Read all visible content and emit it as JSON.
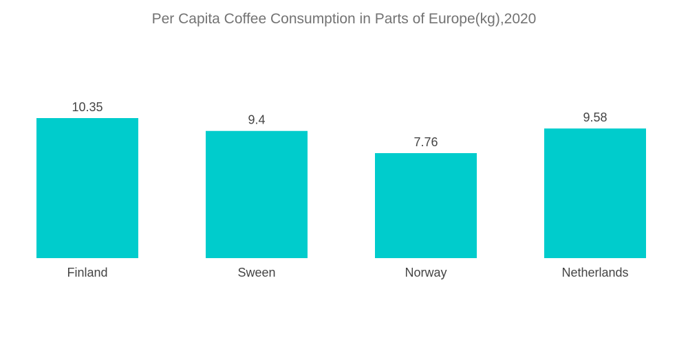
{
  "chart_data": {
    "type": "bar",
    "title": "Per Capita Coffee Consumption in Parts of Europe(kg),2020",
    "categories": [
      "Finland",
      "Sween",
      "Norway",
      "Netherlands"
    ],
    "values": [
      10.35,
      9.4,
      7.76,
      9.58
    ],
    "value_labels": [
      "10.35",
      "9.4",
      "7.76",
      "9.58"
    ],
    "xlabel": "",
    "ylabel": "",
    "ylim": [
      0,
      10.35
    ],
    "grid": false,
    "legend": "none",
    "bar_color": "#00cccc"
  }
}
